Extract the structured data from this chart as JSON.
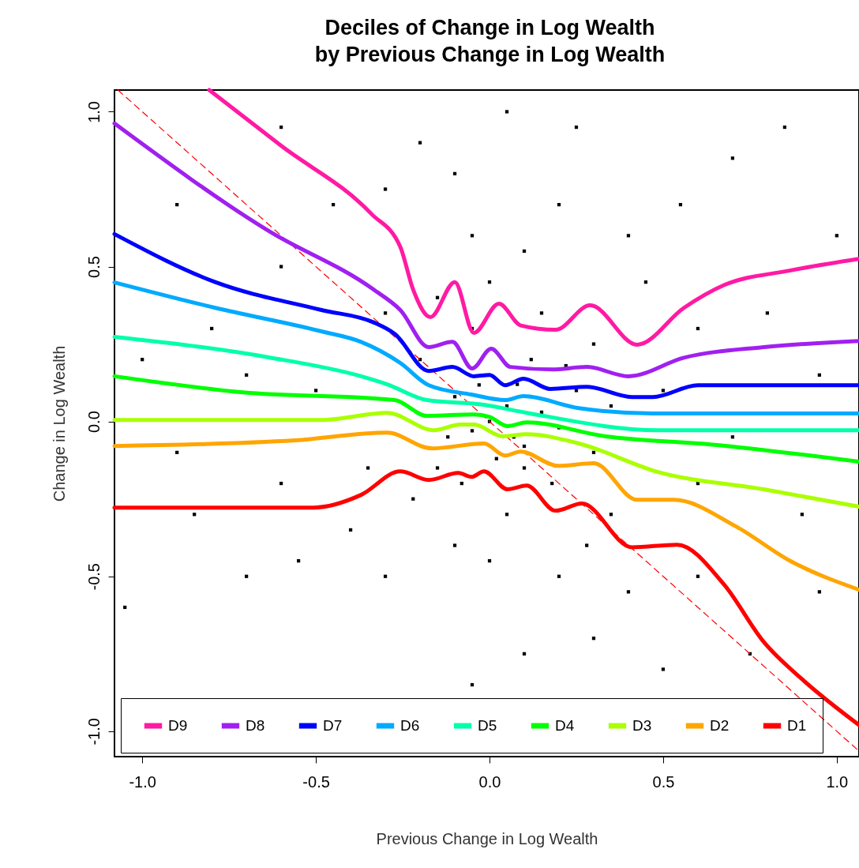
{
  "chart_data": {
    "type": "line",
    "title": "Deciles of Change in Log Wealth\nby Previous Change in Log Wealth",
    "xlabel": "Previous Change in Log Wealth",
    "ylabel": "Change in Log Wealth",
    "xlim": [
      -1.08,
      1.064
    ],
    "ylim": [
      -1.082,
      1.07
    ],
    "xticks": [
      {
        "value": -1,
        "label": "-1.0"
      },
      {
        "value": -0.5,
        "label": "-0.5"
      },
      {
        "value": 0,
        "label": "0.0"
      },
      {
        "value": 0.5,
        "label": "0.5"
      },
      {
        "value": 1,
        "label": "1.0"
      }
    ],
    "yticks": [
      {
        "value": -1,
        "label": "-1.0"
      },
      {
        "value": -0.5,
        "label": "-0.5"
      },
      {
        "value": 0,
        "label": "0.0"
      },
      {
        "value": 0.5,
        "label": "0.5"
      },
      {
        "value": 1,
        "label": "1.0"
      }
    ],
    "grid": false,
    "legend": "bottom left",
    "line_style": "solid",
    "series": [
      {
        "type": "scatter",
        "color": "#000000",
        "marker": "square",
        "x": [
          0,
          0.05,
          -0.05,
          0.1,
          -0.1,
          0.02,
          0.08,
          -0.12,
          0.15,
          -0.03,
          0.2,
          0.12,
          -0.08,
          0.25,
          -0.2,
          0.3,
          0.05,
          -0.05,
          0.18,
          0.35,
          0,
          0.1,
          -0.05,
          0.2,
          -0.1,
          0.25,
          0.05,
          -0.2,
          0.4,
          0.55,
          0.7,
          0.85,
          0.6,
          0.8,
          0.95,
          0.7,
          0.9,
          0.6,
          0.4,
          0.2,
          0,
          -0.1,
          0.3,
          0.1,
          -0.05,
          0.5,
          0.75,
          -0.3,
          -0.4,
          -0.55,
          -0.7,
          -0.9,
          -1,
          -0.8,
          -0.6,
          -0.45,
          -0.3,
          -0.9,
          -0.7,
          -0.5,
          -0.35,
          -1.05,
          -0.6,
          0.15,
          0.3,
          -0.15,
          0.35,
          0.5,
          0.45,
          -0.3,
          0.1,
          0.07,
          -0.15,
          0.22,
          -0.22,
          0.28,
          0.6,
          1,
          -0.6,
          -0.85,
          0.95
        ],
        "values": [
          0,
          0.05,
          -0.03,
          -0.08,
          0.08,
          -0.12,
          0.12,
          -0.05,
          0.03,
          0.118,
          -0.02,
          0.2,
          -0.2,
          0.1,
          0.2,
          -0.1,
          -0.3,
          0.3,
          -0.2,
          0.05,
          0.45,
          0.55,
          0.6,
          0.7,
          0.8,
          0.95,
          1,
          0.9,
          0.6,
          0.7,
          0.85,
          0.95,
          0.3,
          0.35,
          0.15,
          -0.05,
          -0.3,
          -0.5,
          -0.55,
          -0.5,
          -0.45,
          -0.4,
          -0.7,
          -0.75,
          -0.85,
          -0.8,
          -0.75,
          -0.5,
          -0.35,
          -0.45,
          -0.5,
          -0.1,
          0.2,
          0.3,
          0.5,
          0.7,
          0.75,
          0.7,
          0.15,
          0.1,
          -0.15,
          -0.6,
          -0.2,
          0.35,
          0.25,
          0.4,
          -0.3,
          0.1,
          0.45,
          0.35,
          -0.15,
          -0.05,
          -0.15,
          0.18,
          -0.25,
          -0.4,
          -0.2,
          0.6,
          0.95,
          -0.3,
          -0.55
        ]
      },
      {
        "type": "line",
        "color": "#ff0000",
        "line_style": "dashed",
        "x": [
          -1.07,
          1.064
        ],
        "values": [
          1.07,
          -1.064
        ]
      },
      {
        "name": "D9",
        "color": "#ff1aa3",
        "x": [
          -0.807,
          -0.6,
          -0.34,
          -0.257,
          -0.22,
          -0.17,
          -0.1,
          -0.045,
          0.027,
          0.09,
          0.19,
          0.29,
          0.425,
          0.56,
          0.675,
          0.864,
          1.064
        ],
        "values": [
          1.07,
          0.89,
          0.67,
          0.564,
          0.426,
          0.337,
          0.45,
          0.286,
          0.38,
          0.31,
          0.296,
          0.375,
          0.248,
          0.367,
          0.44,
          0.487,
          0.525
        ]
      },
      {
        "name": "D8",
        "color": "#a020f0",
        "x": [
          -1.08,
          -0.636,
          -0.334,
          -0.257,
          -0.175,
          -0.107,
          -0.05,
          0.005,
          0.06,
          0.18,
          0.28,
          0.4,
          0.56,
          0.79,
          1.064
        ],
        "values": [
          0.962,
          0.615,
          0.426,
          0.36,
          0.24,
          0.257,
          0.171,
          0.235,
          0.176,
          0.168,
          0.176,
          0.146,
          0.206,
          0.24,
          0.26
        ]
      },
      {
        "name": "D7",
        "color": "#0000ff",
        "x": [
          -1.08,
          -0.79,
          -0.484,
          -0.334,
          -0.273,
          -0.175,
          -0.107,
          -0.045,
          0,
          0.045,
          0.098,
          0.175,
          0.28,
          0.41,
          0.47,
          0.6,
          0.65,
          1.064
        ],
        "values": [
          0.605,
          0.45,
          0.36,
          0.32,
          0.283,
          0.163,
          0.176,
          0.146,
          0.15,
          0.117,
          0.138,
          0.105,
          0.112,
          0.079,
          0.079,
          0.117,
          0.117,
          0.117
        ]
      },
      {
        "name": "D6",
        "color": "#00aaff",
        "x": [
          -1.08,
          -0.79,
          -0.484,
          -0.37,
          -0.257,
          -0.175,
          -0.052,
          0.045,
          0.098,
          0.257,
          0.47,
          1.064
        ],
        "values": [
          0.449,
          0.367,
          0.291,
          0.257,
          0.189,
          0.117,
          0.087,
          0.069,
          0.082,
          0.043,
          0.026,
          0.026
        ]
      },
      {
        "name": "D5",
        "color": "#00ffaa",
        "x": [
          -1.08,
          -0.636,
          -0.37,
          -0.295,
          -0.18,
          -0.016,
          0.107,
          0.485,
          1.064
        ],
        "values": [
          0.273,
          0.207,
          0.146,
          0.12,
          0.069,
          0.054,
          0.028,
          -0.028,
          -0.028
        ]
      },
      {
        "name": "D4",
        "color": "#00ff00",
        "x": [
          -1.08,
          -0.71,
          -0.273,
          -0.18,
          -0.045,
          0,
          0.052,
          0.107,
          0.334,
          0.636,
          1.064
        ],
        "values": [
          0.146,
          0.094,
          0.069,
          0.018,
          0.023,
          0.015,
          -0.015,
          -0.003,
          -0.048,
          -0.074,
          -0.13
        ]
      },
      {
        "name": "D3",
        "color": "#aaff00",
        "x": [
          -1.08,
          -0.484,
          -0.295,
          -0.16,
          -0.084,
          -0.045,
          0.039,
          0.107,
          0.257,
          0.485,
          0.79,
          1.064
        ],
        "values": [
          0.005,
          0.005,
          0.028,
          -0.028,
          -0.01,
          -0.01,
          -0.048,
          -0.041,
          -0.071,
          -0.163,
          -0.219,
          -0.275
        ]
      },
      {
        "name": "D2",
        "color": "#ffa500",
        "x": [
          -1.08,
          -0.56,
          -0.295,
          -0.166,
          -0.016,
          0.045,
          0.09,
          0.197,
          0.3,
          0.425,
          0.53,
          0.71,
          0.864,
          1.064
        ],
        "values": [
          -0.079,
          -0.061,
          -0.036,
          -0.087,
          -0.071,
          -0.11,
          -0.097,
          -0.143,
          -0.135,
          -0.253,
          -0.253,
          -0.339,
          -0.449,
          -0.543
        ]
      },
      {
        "name": "D1",
        "color": "#ff0000",
        "x": [
          -1.08,
          -0.507,
          -0.37,
          -0.257,
          -0.175,
          -0.09,
          -0.052,
          -0.016,
          0.052,
          0.107,
          0.19,
          0.266,
          0.41,
          0.54,
          0.675,
          0.79,
          0.9,
          1.064
        ],
        "values": [
          -0.278,
          -0.278,
          -0.237,
          -0.161,
          -0.189,
          -0.166,
          -0.179,
          -0.161,
          -0.219,
          -0.207,
          -0.288,
          -0.265,
          -0.406,
          -0.398,
          -0.526,
          -0.712,
          -0.832,
          -0.98
        ]
      }
    ]
  }
}
